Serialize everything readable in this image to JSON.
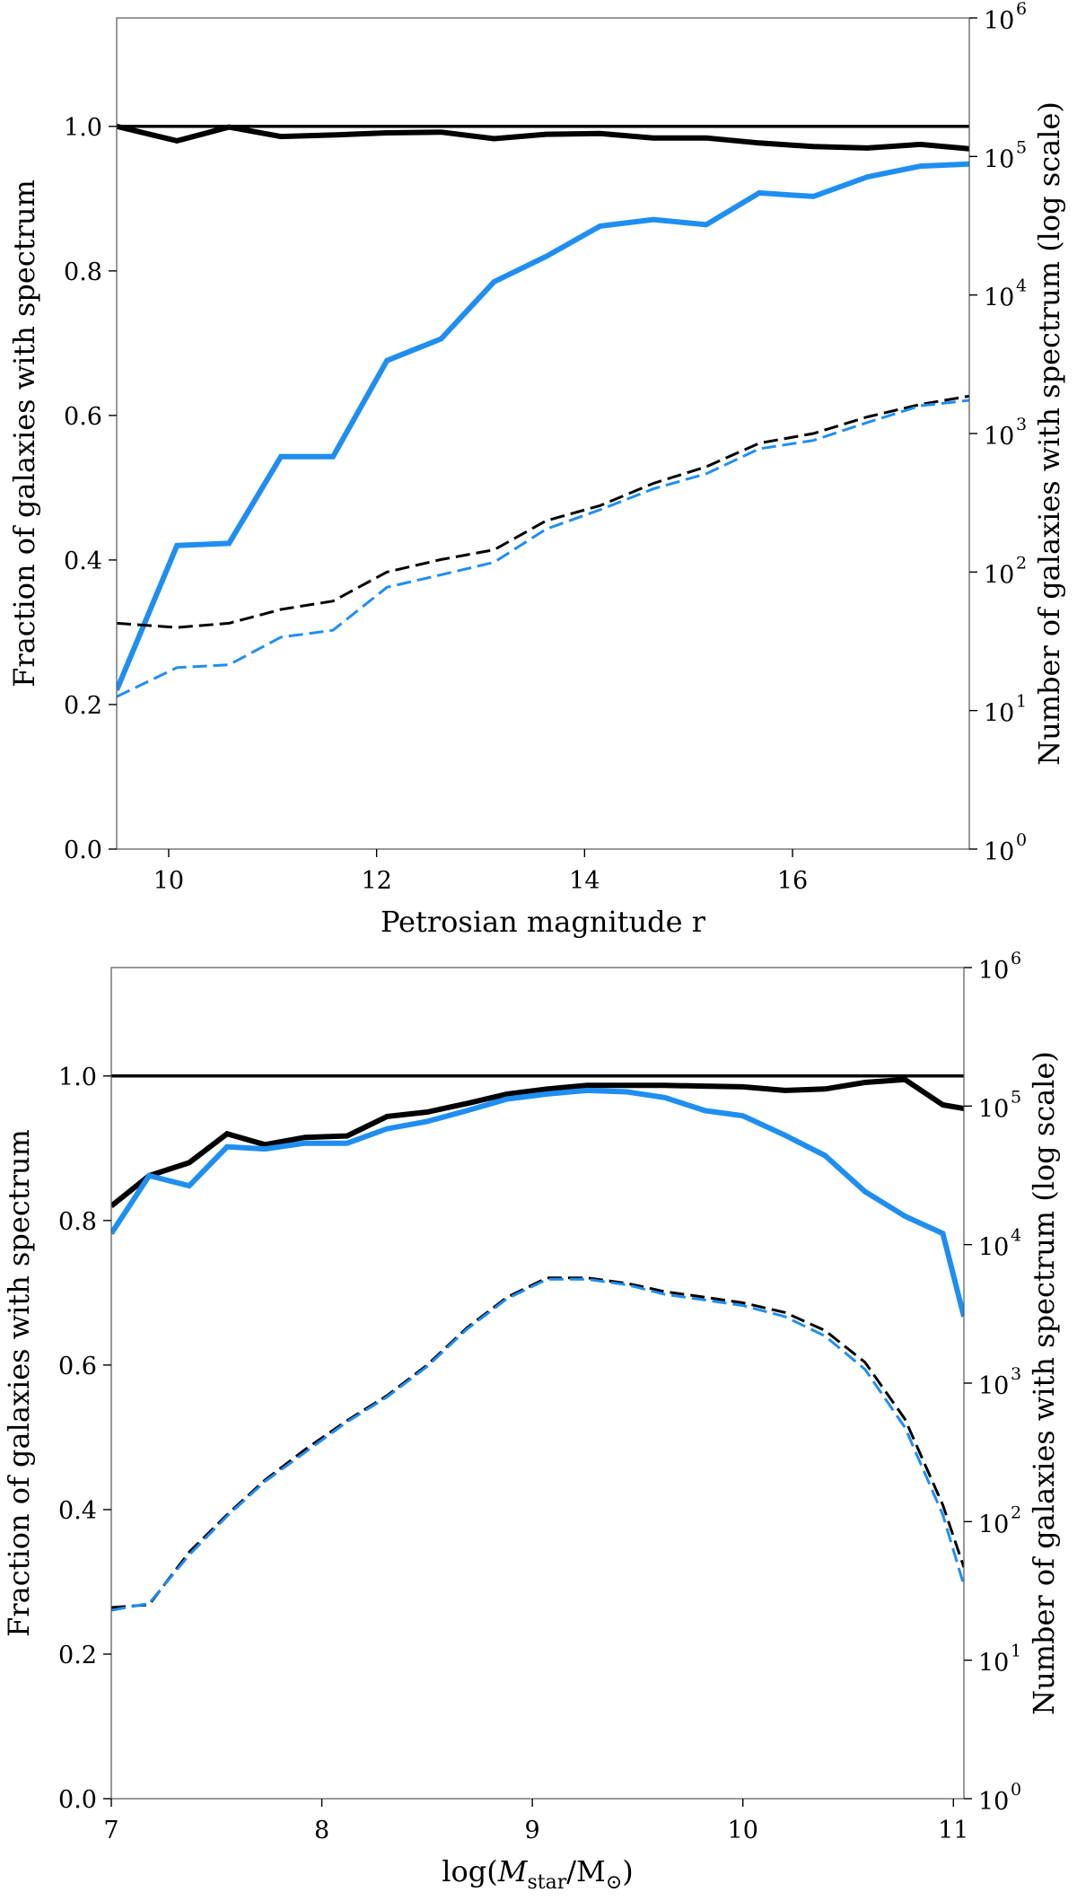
{
  "colors": {
    "black": "#000000",
    "blue": "#1f8ef1"
  },
  "chart_data": [
    {
      "type": "line",
      "id": "top",
      "xlabel": "Petrosian magnitude r",
      "ylabel_left": "Fraction of galaxies with spectrum",
      "ylabel_right": "Number of galaxies with spectrum (log scale)",
      "xlim": [
        9.5,
        17.7
      ],
      "ylim_left": [
        0.0,
        1.15
      ],
      "ylim_right_log10": [
        0,
        6
      ],
      "xticks": [
        10,
        12,
        14,
        16
      ],
      "xtick_labels": [
        "10",
        "12",
        "14",
        "16"
      ],
      "yticks_left": [
        0.0,
        0.2,
        0.4,
        0.6,
        0.8,
        1.0
      ],
      "ytick_labels_left": [
        "0.0",
        "0.2",
        "0.4",
        "0.6",
        "0.8",
        "1.0"
      ],
      "yticks_right": [
        0,
        1,
        2,
        3,
        4,
        5,
        6
      ],
      "ytick_labels_right": [
        "10",
        "10",
        "10",
        "10",
        "10",
        "10",
        "10"
      ],
      "ytick_exponents_right": [
        "0",
        "1",
        "2",
        "3",
        "4",
        "5",
        "6"
      ],
      "x": [
        9.5,
        10.08,
        10.58,
        11.08,
        11.58,
        12.1,
        12.62,
        13.13,
        13.63,
        14.15,
        14.66,
        15.17,
        15.68,
        16.2,
        16.72,
        17.23,
        17.7
      ],
      "reference_line": 1.0,
      "series": [
        {
          "name": "fraction (black)",
          "axis": "left",
          "color": "black",
          "style": "solid",
          "width": 6,
          "values": [
            1.0,
            0.98,
            0.999,
            0.986,
            0.988,
            0.991,
            0.992,
            0.983,
            0.989,
            0.99,
            0.984,
            0.984,
            0.977,
            0.972,
            0.97,
            0.975,
            0.969
          ]
        },
        {
          "name": "fraction (blue)",
          "axis": "left",
          "color": "blue",
          "style": "solid",
          "width": 6,
          "values": [
            0.22,
            0.42,
            0.423,
            0.543,
            0.543,
            0.676,
            0.706,
            0.785,
            0.82,
            0.862,
            0.871,
            0.864,
            0.908,
            0.903,
            0.93,
            0.945,
            0.948
          ]
        },
        {
          "name": "number (black)",
          "axis": "right",
          "color": "black",
          "style": "dashed",
          "width": 3,
          "values": [
            1.63,
            1.6,
            1.63,
            1.73,
            1.79,
            2.0,
            2.09,
            2.16,
            2.37,
            2.48,
            2.64,
            2.76,
            2.93,
            3.0,
            3.12,
            3.21,
            3.27
          ]
        },
        {
          "name": "number (blue)",
          "axis": "right",
          "color": "blue",
          "style": "dashed",
          "width": 3,
          "values": [
            1.1,
            1.31,
            1.33,
            1.53,
            1.58,
            1.89,
            1.98,
            2.07,
            2.31,
            2.45,
            2.6,
            2.71,
            2.89,
            2.95,
            3.08,
            3.2,
            3.24
          ]
        }
      ]
    },
    {
      "type": "line",
      "id": "bottom",
      "xlabel": "log(M_star/M_sun)",
      "xlabel_parts": {
        "prefix": "log(",
        "M": "M",
        "star": "star",
        "slash": "/M",
        "sun": "⊙",
        "suffix": ")"
      },
      "ylabel_left": "Fraction of galaxies with spectrum",
      "ylabel_right": "Number of galaxies with spectrum (log scale)",
      "xlim": [
        7.0,
        11.05
      ],
      "ylim_left": [
        0.0,
        1.15
      ],
      "ylim_right_log10": [
        0,
        6
      ],
      "xticks": [
        7,
        8,
        9,
        10,
        11
      ],
      "xtick_labels": [
        "7",
        "8",
        "9",
        "10",
        "11"
      ],
      "yticks_left": [
        0.0,
        0.2,
        0.4,
        0.6,
        0.8,
        1.0
      ],
      "ytick_labels_left": [
        "0.0",
        "0.2",
        "0.4",
        "0.6",
        "0.8",
        "1.0"
      ],
      "yticks_right": [
        0,
        1,
        2,
        3,
        4,
        5,
        6
      ],
      "ytick_labels_right": [
        "10",
        "10",
        "10",
        "10",
        "10",
        "10",
        "10"
      ],
      "ytick_exponents_right": [
        "0",
        "1",
        "2",
        "3",
        "4",
        "5",
        "6"
      ],
      "x": [
        7.0,
        7.18,
        7.37,
        7.55,
        7.73,
        7.92,
        8.12,
        8.31,
        8.5,
        8.69,
        8.88,
        9.07,
        9.26,
        9.45,
        9.63,
        9.82,
        10.0,
        10.2,
        10.39,
        10.58,
        10.77,
        10.95,
        11.05
      ],
      "reference_line": 1.0,
      "series": [
        {
          "name": "fraction (black)",
          "axis": "left",
          "color": "black",
          "style": "solid",
          "width": 6,
          "values": [
            0.82,
            0.862,
            0.88,
            0.92,
            0.905,
            0.915,
            0.917,
            0.944,
            0.95,
            0.962,
            0.975,
            0.982,
            0.987,
            0.987,
            0.987,
            0.986,
            0.985,
            0.98,
            0.982,
            0.991,
            0.995,
            0.96,
            0.955
          ]
        },
        {
          "name": "fraction (blue)",
          "axis": "left",
          "color": "blue",
          "style": "solid",
          "width": 6,
          "values": [
            0.782,
            0.862,
            0.848,
            0.902,
            0.899,
            0.907,
            0.907,
            0.927,
            0.937,
            0.952,
            0.968,
            0.975,
            0.98,
            0.978,
            0.97,
            0.952,
            0.945,
            0.918,
            0.89,
            0.84,
            0.806,
            0.782,
            0.667
          ]
        },
        {
          "name": "number (black)",
          "axis": "right",
          "color": "black",
          "style": "dashed",
          "width": 3,
          "values": [
            1.38,
            1.4,
            1.78,
            2.05,
            2.3,
            2.52,
            2.73,
            2.91,
            3.13,
            3.4,
            3.62,
            3.76,
            3.76,
            3.72,
            3.66,
            3.62,
            3.58,
            3.51,
            3.38,
            3.15,
            2.74,
            2.12,
            1.67
          ]
        },
        {
          "name": "number (blue)",
          "axis": "right",
          "color": "blue",
          "style": "dashed",
          "width": 3,
          "values": [
            1.36,
            1.41,
            1.76,
            2.04,
            2.29,
            2.5,
            2.72,
            2.9,
            3.12,
            3.39,
            3.61,
            3.75,
            3.75,
            3.71,
            3.64,
            3.6,
            3.56,
            3.48,
            3.34,
            3.1,
            2.68,
            2.05,
            1.54
          ]
        }
      ]
    }
  ]
}
